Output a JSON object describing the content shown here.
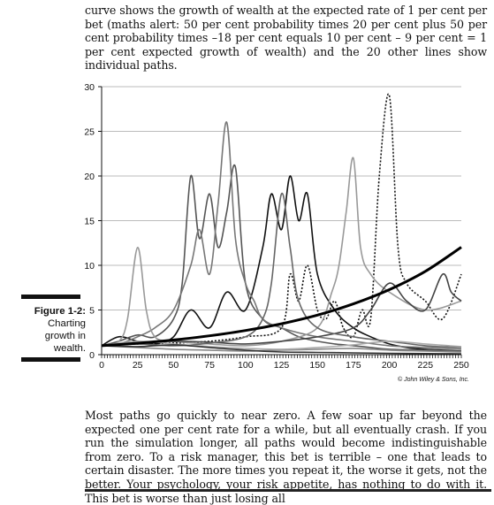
{
  "text": {
    "top_paragraph": "curve shows the growth of wealth at the expected rate of 1 per cent per bet (maths alert: 50 per cent probability times 20 per cent plus 50 per cent proba­bility times –18 per cent equals 10 per cent – 9 per cent = 1 per cent expected growth of wealth) and the 20 other lines show individual paths.",
    "figure_label": "Figure 1-2:",
    "figure_caption": [
      "Charting",
      "growth in",
      "wealth."
    ],
    "bottom_paragraph": "Most paths go quickly to near zero. A few soar up far beyond the expected one per cent rate for a while, but all eventually crash. If you run the simula­tion longer, all paths would become indistinguishable from zero. To a risk manager, this bet is terrible – one that leads to certain disaster. The more times you repeat it, the worse it gets, not the better. Your psychology, your risk appetite, has nothing to do with it. This bet is worse than just losing all",
    "credit": "© John Wiley & Sons, Inc."
  },
  "chart_data": {
    "type": "line",
    "xlim": [
      0,
      250
    ],
    "ylim": [
      0,
      30
    ],
    "x_ticks": [
      0,
      25,
      50,
      75,
      100,
      125,
      150,
      175,
      200,
      225,
      250
    ],
    "y_ticks": [
      0,
      5,
      10,
      15,
      20,
      25,
      30
    ],
    "grid": "horizontal",
    "legend": "none",
    "expected_curve": {
      "x": [
        0,
        25,
        50,
        75,
        100,
        125,
        150,
        175,
        200,
        225,
        250
      ],
      "y": [
        1.0,
        1.28,
        1.64,
        2.11,
        2.7,
        3.46,
        4.43,
        5.68,
        7.28,
        9.33,
        12.03
      ]
    },
    "paths": [
      {
        "color": "#111111",
        "dash": "",
        "x": [
          0,
          12,
          25,
          37,
          50,
          62,
          75,
          87,
          100,
          112,
          118,
          125,
          131,
          137,
          143,
          150,
          162,
          175,
          187,
          200,
          212,
          225,
          237,
          250
        ],
        "y": [
          1,
          2,
          1.5,
          1.2,
          2,
          5,
          3,
          7,
          5,
          12,
          18,
          14,
          20,
          15,
          18,
          9,
          5,
          3,
          2,
          1.2,
          0.8,
          0.6,
          0.5,
          0.4
        ]
      },
      {
        "color": "#555555",
        "dash": "",
        "x": [
          0,
          12,
          25,
          37,
          50,
          56,
          62,
          68,
          75,
          81,
          87,
          93,
          100,
          112,
          125,
          137,
          150,
          162,
          175,
          187,
          200,
          225,
          250
        ],
        "y": [
          1,
          1.5,
          2.2,
          2,
          4,
          8,
          20,
          13,
          18,
          12,
          16,
          21,
          8,
          4,
          3,
          2,
          1.5,
          1.2,
          1,
          0.8,
          0.6,
          0.5,
          0.4
        ]
      },
      {
        "color": "#777777",
        "dash": "",
        "x": [
          0,
          12,
          25,
          37,
          50,
          62,
          68,
          75,
          81,
          87,
          93,
          100,
          106,
          112,
          125,
          150,
          175,
          200,
          225,
          250
        ],
        "y": [
          1,
          1.2,
          2,
          3,
          5,
          10,
          14,
          9,
          17,
          26,
          13,
          8,
          6,
          4,
          3,
          2,
          1.5,
          1,
          0.8,
          0.6
        ]
      },
      {
        "color": "#111111",
        "dash": "2,2",
        "x": [
          0,
          25,
          50,
          75,
          100,
          125,
          131,
          137,
          143,
          150,
          156,
          162,
          168,
          175,
          181,
          187,
          193,
          200,
          206,
          212,
          225,
          237,
          250
        ],
        "y": [
          1,
          1.2,
          1.3,
          1.5,
          2,
          3,
          9,
          6,
          10,
          5,
          4,
          6,
          3,
          2,
          5,
          4,
          20,
          29,
          12,
          8,
          6,
          4,
          9
        ]
      },
      {
        "color": "#999999",
        "dash": "",
        "x": [
          0,
          12,
          18,
          25,
          31,
          37,
          50,
          75,
          100,
          125,
          150,
          160,
          165,
          170,
          175,
          180,
          187,
          200,
          225,
          250
        ],
        "y": [
          1,
          1.5,
          4,
          12,
          5,
          2,
          1.5,
          1.2,
          1,
          1.5,
          3,
          7,
          10,
          16,
          22,
          12,
          9,
          7,
          5,
          6
        ]
      },
      {
        "color": "#444444",
        "dash": "",
        "x": [
          0,
          25,
          50,
          75,
          100,
          125,
          150,
          175,
          187,
          200,
          212,
          225,
          237,
          243,
          250
        ],
        "y": [
          1,
          1.3,
          1.5,
          1.4,
          1.2,
          1.5,
          2,
          3,
          5,
          8,
          6,
          5,
          9,
          7,
          6
        ]
      },
      {
        "color": "#666666",
        "dash": "",
        "x": [
          0,
          25,
          50,
          75,
          100,
          112,
          118,
          125,
          131,
          137,
          150,
          175,
          200,
          225,
          250
        ],
        "y": [
          1,
          1.2,
          1,
          1.3,
          2,
          4,
          8,
          18,
          12,
          6,
          3,
          2,
          1.5,
          1,
          0.8
        ]
      },
      {
        "color": "#888888",
        "dash": "",
        "x": [
          0,
          25,
          50,
          75,
          100,
          125,
          150,
          175,
          200,
          225,
          250
        ],
        "y": [
          1,
          0.8,
          0.6,
          0.5,
          0.4,
          0.5,
          0.6,
          0.7,
          0.5,
          0.4,
          0.3
        ]
      },
      {
        "color": "#aaaaaa",
        "dash": "",
        "x": [
          0,
          25,
          50,
          75,
          100,
          125,
          150,
          175,
          200,
          225,
          250
        ],
        "y": [
          1,
          1.5,
          1.2,
          0.9,
          0.7,
          0.6,
          0.8,
          1.1,
          1.5,
          1.2,
          0.9
        ]
      },
      {
        "color": "#333333",
        "dash": "",
        "x": [
          0,
          25,
          50,
          75,
          100,
          125,
          150,
          175,
          200,
          225,
          250
        ],
        "y": [
          1,
          0.9,
          1.1,
          0.8,
          0.5,
          0.3,
          0.25,
          0.2,
          0.15,
          0.12,
          0.1
        ]
      }
    ]
  }
}
